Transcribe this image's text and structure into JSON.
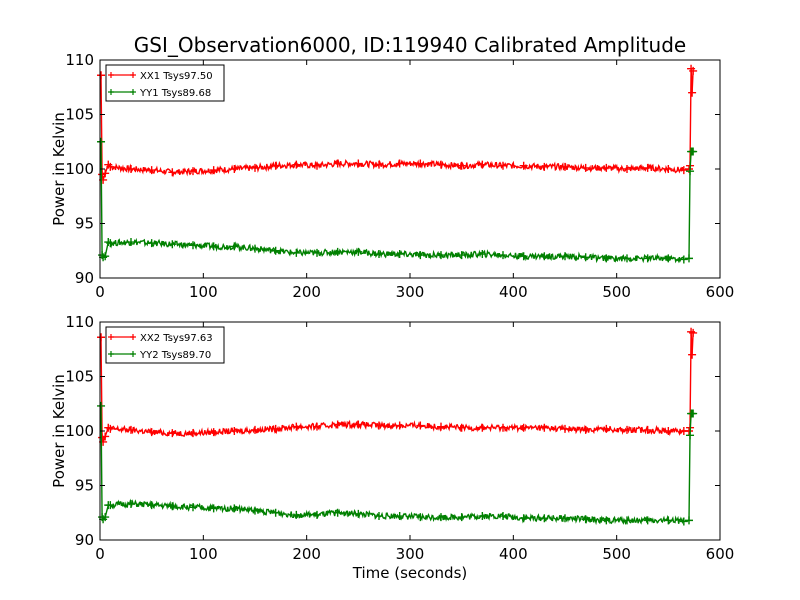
{
  "figure": {
    "title": "GSI_Observation6000, ID:119940 Calibrated Amplitude",
    "xlabel": "Time (seconds)"
  },
  "chart_data": [
    {
      "type": "line",
      "title": "GSI_Observation6000, ID:119940 Calibrated Amplitude",
      "xlabel": "",
      "ylabel": "Power in Kelvin",
      "xlim": [
        0,
        600
      ],
      "ylim": [
        90,
        110
      ],
      "xticks": [
        0,
        100,
        200,
        300,
        400,
        500,
        600
      ],
      "yticks": [
        90,
        95,
        100,
        105,
        110
      ],
      "legend_position": "top-left",
      "series": [
        {
          "name": "XX1 Tsys97.50",
          "color": "#ff0000",
          "marker": "+",
          "x": [
            1,
            2,
            3,
            5,
            8,
            10,
            30,
            50,
            70,
            90,
            110,
            130,
            150,
            170,
            190,
            210,
            230,
            250,
            270,
            290,
            310,
            330,
            350,
            370,
            390,
            410,
            430,
            450,
            470,
            490,
            510,
            530,
            550,
            565,
            570,
            571,
            572,
            573,
            574
          ],
          "y": [
            108.6,
            99.5,
            99.0,
            99.6,
            100.4,
            100.2,
            100.0,
            99.9,
            99.7,
            99.8,
            99.9,
            100.0,
            100.1,
            100.3,
            100.4,
            100.3,
            100.5,
            100.5,
            100.4,
            100.5,
            100.5,
            100.4,
            100.3,
            100.4,
            100.3,
            100.3,
            100.2,
            100.2,
            100.1,
            100.1,
            100.0,
            100.1,
            100.0,
            99.9,
            100.0,
            100.3,
            109.2,
            107.0,
            109.0
          ]
        },
        {
          "name": "YY1 Tsys89.68",
          "color": "#008000",
          "marker": "+",
          "x": [
            1,
            2,
            3,
            5,
            8,
            10,
            30,
            50,
            70,
            90,
            110,
            130,
            150,
            170,
            190,
            210,
            230,
            250,
            270,
            290,
            310,
            330,
            350,
            370,
            390,
            410,
            430,
            450,
            470,
            490,
            510,
            530,
            550,
            565,
            570,
            571,
            572,
            573,
            574
          ],
          "y": [
            102.5,
            92.1,
            91.9,
            92.0,
            93.3,
            93.2,
            93.3,
            93.2,
            93.1,
            93.0,
            92.9,
            92.9,
            92.7,
            92.5,
            92.3,
            92.3,
            92.4,
            92.4,
            92.2,
            92.2,
            92.1,
            92.1,
            92.1,
            92.2,
            92.1,
            92.0,
            92.0,
            92.0,
            91.9,
            91.8,
            91.8,
            91.8,
            91.8,
            91.7,
            91.8,
            99.8,
            101.6,
            101.6,
            101.6
          ]
        }
      ]
    },
    {
      "type": "line",
      "title": "",
      "xlabel": "Time (seconds)",
      "ylabel": "Power in Kelvin",
      "xlim": [
        0,
        600
      ],
      "ylim": [
        90,
        110
      ],
      "xticks": [
        0,
        100,
        200,
        300,
        400,
        500,
        600
      ],
      "yticks": [
        90,
        95,
        100,
        105,
        110
      ],
      "legend_position": "top-left",
      "series": [
        {
          "name": "XX2 Tsys97.63",
          "color": "#ff0000",
          "marker": "+",
          "x": [
            1,
            2,
            3,
            5,
            8,
            10,
            30,
            50,
            70,
            90,
            110,
            130,
            150,
            170,
            190,
            210,
            230,
            250,
            270,
            290,
            310,
            330,
            350,
            370,
            390,
            410,
            430,
            450,
            470,
            490,
            510,
            530,
            550,
            565,
            570,
            571,
            572,
            573,
            574
          ],
          "y": [
            108.6,
            99.4,
            99.0,
            99.5,
            100.3,
            100.2,
            100.1,
            99.9,
            99.8,
            99.8,
            99.9,
            100.0,
            100.1,
            100.2,
            100.4,
            100.4,
            100.6,
            100.6,
            100.5,
            100.5,
            100.5,
            100.4,
            100.3,
            100.3,
            100.3,
            100.3,
            100.3,
            100.2,
            100.1,
            100.2,
            100.1,
            100.1,
            100.0,
            100.0,
            100.0,
            100.3,
            109.1,
            107.0,
            109.0
          ]
        },
        {
          "name": "YY2 Tsys89.70",
          "color": "#008000",
          "marker": "+",
          "x": [
            1,
            2,
            3,
            5,
            8,
            10,
            30,
            50,
            70,
            90,
            110,
            130,
            150,
            170,
            190,
            210,
            230,
            250,
            270,
            290,
            310,
            330,
            350,
            370,
            390,
            410,
            430,
            450,
            470,
            490,
            510,
            530,
            550,
            565,
            570,
            571,
            572,
            573,
            574
          ],
          "y": [
            102.3,
            92.1,
            91.9,
            92.1,
            93.2,
            93.2,
            93.3,
            93.2,
            93.1,
            93.0,
            92.9,
            92.9,
            92.7,
            92.5,
            92.3,
            92.3,
            92.5,
            92.4,
            92.2,
            92.2,
            92.1,
            92.1,
            92.1,
            92.2,
            92.2,
            92.0,
            92.0,
            92.0,
            91.9,
            91.8,
            91.8,
            91.8,
            91.8,
            91.7,
            91.8,
            99.6,
            101.6,
            101.6,
            101.6
          ]
        }
      ]
    }
  ]
}
